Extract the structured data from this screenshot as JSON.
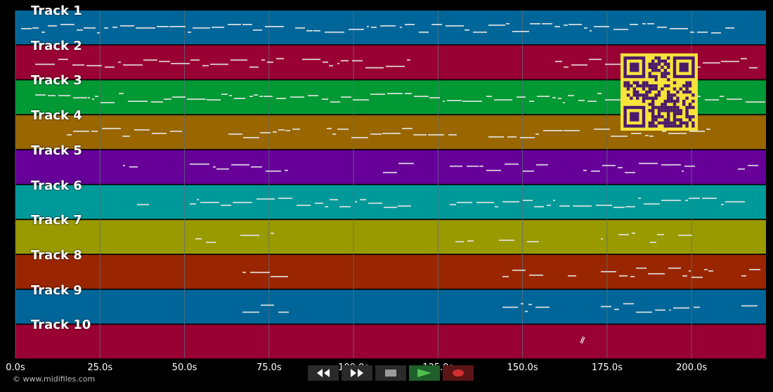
{
  "colors": {
    "grid": "#5c6f78",
    "note": "#e8e8e8",
    "qr_fg": "#4a1a6b",
    "qr_bg": "#f7e33b",
    "play": "#4fbf4f",
    "record": "#d03030",
    "stop": "#9a9a9a"
  },
  "tracks": [
    {
      "label": "Track 1",
      "color": "#006699"
    },
    {
      "label": "Track 2",
      "color": "#990033"
    },
    {
      "label": "Track 3",
      "color": "#009933"
    },
    {
      "label": "Track 4",
      "color": "#996600"
    },
    {
      "label": "Track 5",
      "color": "#660099"
    },
    {
      "label": "Track 6",
      "color": "#009999"
    },
    {
      "label": "Track 7",
      "color": "#999900"
    },
    {
      "label": "Track 8",
      "color": "#992600"
    },
    {
      "label": "Track 9",
      "color": "#006699"
    },
    {
      "label": "Track 10",
      "color": "#990033"
    }
  ],
  "timeline": {
    "tick_labels": [
      "0.0s",
      "25.0s",
      "50.0s",
      "75.0s",
      "100.0s",
      "125.0s",
      "150.0s",
      "175.0s",
      "200.0s"
    ],
    "tick_values": [
      0,
      25,
      50,
      75,
      100,
      125,
      150,
      175,
      200
    ],
    "max_seconds": 222
  },
  "copyright": "© www.midifiles.com",
  "controls": [
    {
      "name": "rewind-button",
      "icon": "rewind-icon"
    },
    {
      "name": "fast-forward-button",
      "icon": "fast-forward-icon"
    },
    {
      "name": "stop-button",
      "icon": "stop-icon"
    },
    {
      "name": "play-button",
      "icon": "play-icon"
    },
    {
      "name": "record-button",
      "icon": "record-icon"
    }
  ]
}
